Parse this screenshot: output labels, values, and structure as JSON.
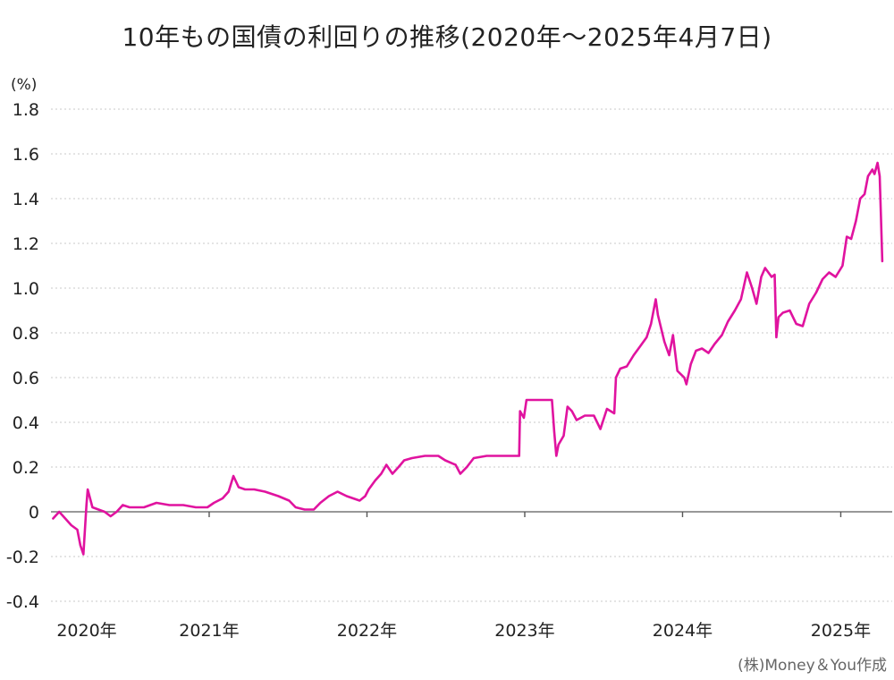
{
  "chart_data": {
    "type": "line",
    "title": "10年もの国債の利回りの推移(2020年～2025年4月7日)",
    "ylabel": "(%)",
    "ylim": [
      -0.4,
      1.8
    ],
    "yticks": [
      {
        "value": 1.8,
        "label": "1.8"
      },
      {
        "value": 1.6,
        "label": "1.6"
      },
      {
        "value": 1.4,
        "label": "1.4"
      },
      {
        "value": 1.2,
        "label": "1.2"
      },
      {
        "value": 1.0,
        "label": "1.0"
      },
      {
        "value": 0.8,
        "label": "0.8"
      },
      {
        "value": 0.6,
        "label": "0.6"
      },
      {
        "value": 0.4,
        "label": "0.4"
      },
      {
        "value": 0.2,
        "label": "0.2"
      },
      {
        "value": 0,
        "label": "0"
      },
      {
        "value": -0.2,
        "label": "-0.2"
      },
      {
        "value": -0.4,
        "label": "-0.4"
      }
    ],
    "xticks": [
      {
        "value": "2020-01-01",
        "label": "2020年"
      },
      {
        "value": "2021-01-01",
        "label": "2021年"
      },
      {
        "value": "2022-01-01",
        "label": "2022年"
      },
      {
        "value": "2023-01-01",
        "label": "2023年"
      },
      {
        "value": "2024-01-01",
        "label": "2024年"
      },
      {
        "value": "2025-01-01",
        "label": "2025年"
      }
    ],
    "grid": true,
    "series": [
      {
        "color": "#e0139f",
        "points": [
          [
            "2020-01-06",
            -0.03
          ],
          [
            "2020-01-20",
            0.0
          ],
          [
            "2020-02-03",
            -0.03
          ],
          [
            "2020-02-17",
            -0.06
          ],
          [
            "2020-03-02",
            -0.08
          ],
          [
            "2020-03-09",
            -0.15
          ],
          [
            "2020-03-16",
            -0.19
          ],
          [
            "2020-03-23",
            0.03
          ],
          [
            "2020-03-26",
            0.1
          ],
          [
            "2020-04-06",
            0.02
          ],
          [
            "2020-04-20",
            0.01
          ],
          [
            "2020-05-04",
            0.0
          ],
          [
            "2020-05-18",
            -0.02
          ],
          [
            "2020-06-01",
            0.0
          ],
          [
            "2020-06-15",
            0.03
          ],
          [
            "2020-07-01",
            0.02
          ],
          [
            "2020-08-03",
            0.02
          ],
          [
            "2020-09-01",
            0.04
          ],
          [
            "2020-10-01",
            0.03
          ],
          [
            "2020-11-02",
            0.03
          ],
          [
            "2020-12-01",
            0.02
          ],
          [
            "2020-12-28",
            0.02
          ],
          [
            "2021-01-12",
            0.04
          ],
          [
            "2021-02-01",
            0.06
          ],
          [
            "2021-02-15",
            0.09
          ],
          [
            "2021-02-26",
            0.16
          ],
          [
            "2021-03-10",
            0.11
          ],
          [
            "2021-03-25",
            0.1
          ],
          [
            "2021-04-15",
            0.1
          ],
          [
            "2021-05-10",
            0.09
          ],
          [
            "2021-06-10",
            0.07
          ],
          [
            "2021-07-05",
            0.05
          ],
          [
            "2021-07-20",
            0.02
          ],
          [
            "2021-08-10",
            0.01
          ],
          [
            "2021-08-31",
            0.01
          ],
          [
            "2021-09-15",
            0.04
          ],
          [
            "2021-10-05",
            0.07
          ],
          [
            "2021-10-25",
            0.09
          ],
          [
            "2021-11-15",
            0.07
          ],
          [
            "2021-12-15",
            0.05
          ],
          [
            "2021-12-28",
            0.07
          ],
          [
            "2022-01-05",
            0.1
          ],
          [
            "2022-01-20",
            0.14
          ],
          [
            "2022-02-03",
            0.17
          ],
          [
            "2022-02-15",
            0.21
          ],
          [
            "2022-03-01",
            0.17
          ],
          [
            "2022-03-15",
            0.2
          ],
          [
            "2022-03-28",
            0.23
          ],
          [
            "2022-04-15",
            0.24
          ],
          [
            "2022-05-15",
            0.25
          ],
          [
            "2022-06-15",
            0.25
          ],
          [
            "2022-07-01",
            0.23
          ],
          [
            "2022-07-25",
            0.21
          ],
          [
            "2022-08-05",
            0.17
          ],
          [
            "2022-08-20",
            0.2
          ],
          [
            "2022-09-05",
            0.24
          ],
          [
            "2022-10-05",
            0.25
          ],
          [
            "2022-11-05",
            0.25
          ],
          [
            "2022-12-01",
            0.25
          ],
          [
            "2022-12-19",
            0.25
          ],
          [
            "2022-12-21",
            0.45
          ],
          [
            "2022-12-30",
            0.42
          ],
          [
            "2023-01-05",
            0.5
          ],
          [
            "2023-01-20",
            0.5
          ],
          [
            "2023-02-05",
            0.5
          ],
          [
            "2023-02-20",
            0.5
          ],
          [
            "2023-03-05",
            0.5
          ],
          [
            "2023-03-10",
            0.36
          ],
          [
            "2023-03-15",
            0.25
          ],
          [
            "2023-03-20",
            0.3
          ],
          [
            "2023-04-01",
            0.34
          ],
          [
            "2023-04-10",
            0.47
          ],
          [
            "2023-04-20",
            0.45
          ],
          [
            "2023-05-01",
            0.41
          ],
          [
            "2023-05-20",
            0.43
          ],
          [
            "2023-06-10",
            0.43
          ],
          [
            "2023-06-25",
            0.37
          ],
          [
            "2023-07-10",
            0.46
          ],
          [
            "2023-07-27",
            0.44
          ],
          [
            "2023-07-31",
            0.6
          ],
          [
            "2023-08-10",
            0.64
          ],
          [
            "2023-08-25",
            0.65
          ],
          [
            "2023-09-10",
            0.7
          ],
          [
            "2023-09-25",
            0.74
          ],
          [
            "2023-10-10",
            0.78
          ],
          [
            "2023-10-20",
            0.84
          ],
          [
            "2023-10-31",
            0.95
          ],
          [
            "2023-11-05",
            0.88
          ],
          [
            "2023-11-20",
            0.76
          ],
          [
            "2023-12-01",
            0.7
          ],
          [
            "2023-12-10",
            0.79
          ],
          [
            "2023-12-20",
            0.63
          ],
          [
            "2024-01-05",
            0.6
          ],
          [
            "2024-01-10",
            0.57
          ],
          [
            "2024-01-20",
            0.66
          ],
          [
            "2024-02-01",
            0.72
          ],
          [
            "2024-02-15",
            0.73
          ],
          [
            "2024-03-01",
            0.71
          ],
          [
            "2024-03-15",
            0.75
          ],
          [
            "2024-04-01",
            0.79
          ],
          [
            "2024-04-15",
            0.85
          ],
          [
            "2024-05-01",
            0.9
          ],
          [
            "2024-05-15",
            0.95
          ],
          [
            "2024-05-29",
            1.07
          ],
          [
            "2024-06-10",
            1.0
          ],
          [
            "2024-06-20",
            0.93
          ],
          [
            "2024-07-01",
            1.05
          ],
          [
            "2024-07-10",
            1.09
          ],
          [
            "2024-07-25",
            1.05
          ],
          [
            "2024-08-01",
            1.06
          ],
          [
            "2024-08-05",
            0.78
          ],
          [
            "2024-08-10",
            0.87
          ],
          [
            "2024-08-20",
            0.89
          ],
          [
            "2024-09-05",
            0.9
          ],
          [
            "2024-09-20",
            0.84
          ],
          [
            "2024-10-05",
            0.83
          ],
          [
            "2024-10-20",
            0.93
          ],
          [
            "2024-11-05",
            0.98
          ],
          [
            "2024-11-20",
            1.04
          ],
          [
            "2024-12-05",
            1.07
          ],
          [
            "2024-12-20",
            1.05
          ],
          [
            "2025-01-05",
            1.1
          ],
          [
            "2025-01-15",
            1.23
          ],
          [
            "2025-01-25",
            1.22
          ],
          [
            "2025-02-05",
            1.3
          ],
          [
            "2025-02-15",
            1.4
          ],
          [
            "2025-02-25",
            1.42
          ],
          [
            "2025-03-05",
            1.5
          ],
          [
            "2025-03-15",
            1.53
          ],
          [
            "2025-03-20",
            1.51
          ],
          [
            "2025-03-27",
            1.56
          ],
          [
            "2025-04-01",
            1.5
          ],
          [
            "2025-04-04",
            1.32
          ],
          [
            "2025-04-07",
            1.12
          ]
        ]
      }
    ]
  },
  "credit": "(株)Money＆You作成"
}
